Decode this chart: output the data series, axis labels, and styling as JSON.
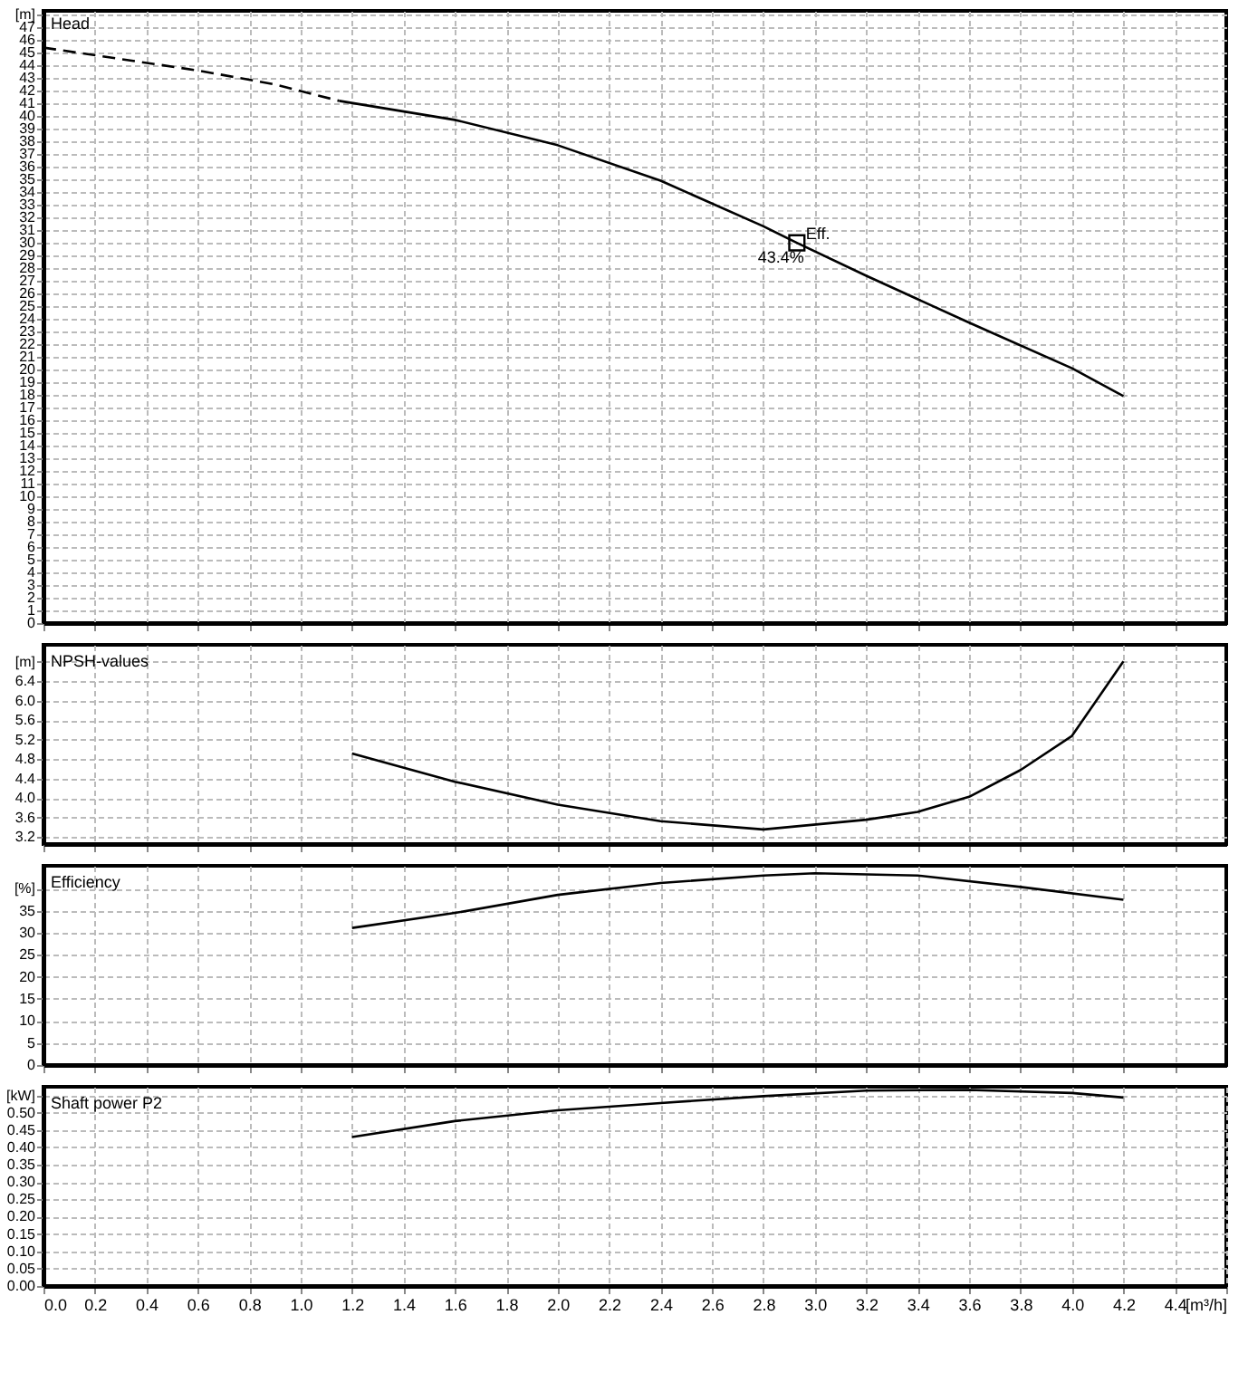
{
  "chart_data": [
    {
      "type": "line",
      "title": "Head",
      "xlim": [
        0,
        4.6
      ],
      "ylim": [
        0,
        48.3
      ],
      "xticks": [
        0,
        {
          "value": 0.2,
          "label": null
        },
        {
          "value": 0.4,
          "label": null
        },
        {
          "value": 0.6,
          "label": null
        },
        {
          "value": 0.8,
          "label": null
        },
        1,
        {
          "value": 1.2,
          "label": null
        },
        {
          "value": 1.4,
          "label": null
        },
        {
          "value": 1.6,
          "label": null
        },
        {
          "value": 1.8,
          "label": null
        },
        2,
        {
          "value": 2.2,
          "label": null
        },
        {
          "value": 2.4,
          "label": null
        },
        {
          "value": 2.6,
          "label": null
        },
        {
          "value": 2.8,
          "label": null
        },
        3,
        {
          "value": 3.2,
          "label": null
        },
        {
          "value": 3.4,
          "label": null
        },
        {
          "value": 3.6,
          "label": null
        },
        {
          "value": 3.8,
          "label": null
        },
        4,
        {
          "value": 4.2,
          "label": null
        },
        {
          "value": 4.4,
          "label": null
        }
      ],
      "yticks": [
        0,
        1,
        2,
        3,
        4,
        5,
        6,
        7,
        8,
        9,
        10,
        11,
        12,
        13,
        14,
        15,
        16,
        17,
        18,
        19,
        20,
        21,
        22,
        23,
        24,
        25,
        26,
        27,
        28,
        29,
        30,
        31,
        32,
        33,
        34,
        35,
        36,
        37,
        38,
        39,
        40,
        41,
        42,
        43,
        44,
        45,
        46,
        47,
        {
          "value": 48,
          "label": "[m]"
        }
      ],
      "tick_labels": "y",
      "grid": true,
      "series": [
        {
          "color": "#000000",
          "line_style": "dashed",
          "x": [
            0,
            0.3,
            0.6,
            0.9,
            1.15
          ],
          "values": [
            45.4,
            44.5,
            43.6,
            42.5,
            41.2
          ]
        },
        {
          "color": "#000000",
          "line_style": "solid",
          "x": [
            1.15,
            1.6,
            2.0,
            2.4,
            2.8,
            2.93,
            3.2,
            3.6,
            4.0,
            4.2
          ],
          "values": [
            41.2,
            39.7,
            37.7,
            34.9,
            31.3,
            30,
            27.4,
            23.7,
            20.1,
            17.9
          ]
        },
        {
          "type": "scatter",
          "color": "#000000",
          "marker": "square",
          "x": [
            2.93
          ],
          "values": [
            30
          ]
        }
      ],
      "annotations": [
        {
          "text": "Eff.",
          "x": 2.93,
          "y": 30
        },
        {
          "text": "43.4%",
          "x": 2.93,
          "y": 30
        }
      ]
    },
    {
      "type": "line",
      "title": "NPSH-values",
      "xlim": [
        0,
        4.6
      ],
      "ylim": [
        3.06,
        7.15
      ],
      "xticks": [
        0,
        {
          "value": 0.2,
          "label": null
        },
        {
          "value": 0.4,
          "label": null
        },
        {
          "value": 0.6,
          "label": null
        },
        {
          "value": 0.8,
          "label": null
        },
        1,
        {
          "value": 1.2,
          "label": null
        },
        {
          "value": 1.4,
          "label": null
        },
        {
          "value": 1.6,
          "label": null
        },
        {
          "value": 1.8,
          "label": null
        },
        2,
        {
          "value": 2.2,
          "label": null
        },
        {
          "value": 2.4,
          "label": null
        },
        {
          "value": 2.6,
          "label": null
        },
        {
          "value": 2.8,
          "label": null
        },
        3,
        {
          "value": 3.2,
          "label": null
        },
        {
          "value": 3.4,
          "label": null
        },
        {
          "value": 3.6,
          "label": null
        },
        {
          "value": 3.8,
          "label": null
        },
        4,
        {
          "value": 4.2,
          "label": null
        },
        {
          "value": 4.4,
          "label": null
        }
      ],
      "yticks": [
        3.2,
        3.6,
        {
          "value": 4,
          "label": "4.0"
        },
        4.4,
        4.8,
        5.2,
        5.6,
        {
          "value": 6,
          "label": "6.0"
        },
        6.4,
        {
          "value": 6.8,
          "label": "[m]"
        }
      ],
      "tick_labels": "y",
      "grid": true,
      "series": [
        {
          "color": "#000000",
          "line_style": "solid",
          "x": [
            1.2,
            1.6,
            2.0,
            2.4,
            2.8,
            3.2,
            3.4,
            3.6,
            3.8,
            4.0,
            4.2
          ],
          "values": [
            4.92,
            4.34,
            3.87,
            3.53,
            3.36,
            3.56,
            3.72,
            4.03,
            4.58,
            5.28,
            6.81
          ]
        }
      ]
    },
    {
      "type": "line",
      "title": "Efficiency",
      "xlim": [
        0,
        4.6
      ],
      "ylim": [
        0,
        45.2
      ],
      "xticks": [
        0,
        {
          "value": 0.2,
          "label": null
        },
        {
          "value": 0.4,
          "label": null
        },
        {
          "value": 0.6,
          "label": null
        },
        {
          "value": 0.8,
          "label": null
        },
        1,
        {
          "value": 1.2,
          "label": null
        },
        {
          "value": 1.4,
          "label": null
        },
        {
          "value": 1.6,
          "label": null
        },
        {
          "value": 1.8,
          "label": null
        },
        2,
        {
          "value": 2.2,
          "label": null
        },
        {
          "value": 2.4,
          "label": null
        },
        {
          "value": 2.6,
          "label": null
        },
        {
          "value": 2.8,
          "label": null
        },
        3,
        {
          "value": 3.2,
          "label": null
        },
        {
          "value": 3.4,
          "label": null
        },
        {
          "value": 3.6,
          "label": null
        },
        {
          "value": 3.8,
          "label": null
        },
        4,
        {
          "value": 4.2,
          "label": null
        },
        {
          "value": 4.4,
          "label": null
        }
      ],
      "yticks": [
        0,
        5,
        10,
        15,
        20,
        25,
        30,
        35,
        {
          "value": 40,
          "label": "[%]"
        }
      ],
      "tick_labels": "y",
      "grid": true,
      "series": [
        {
          "color": "#000000",
          "line_style": "solid",
          "x": [
            1.2,
            1.6,
            2.0,
            2.4,
            2.8,
            3.0,
            3.4,
            3.8,
            4.2
          ],
          "values": [
            31.1,
            34.5,
            38.6,
            41.3,
            43.0,
            43.5,
            43.0,
            40.4,
            37.5
          ]
        }
      ]
    },
    {
      "type": "line",
      "title": "Shaft power P2",
      "xlim": [
        0,
        4.6
      ],
      "ylim": [
        0,
        0.575
      ],
      "xticks": [
        {
          "value": 0,
          "label": "0.0"
        },
        0.2,
        0.4,
        0.6,
        0.8,
        {
          "value": 1,
          "label": "1.0"
        },
        1.2,
        1.4,
        1.6,
        1.8,
        {
          "value": 2,
          "label": "2.0"
        },
        2.2,
        2.4,
        2.6,
        2.8,
        {
          "value": 3,
          "label": "3.0"
        },
        3.2,
        3.4,
        3.6,
        3.8,
        {
          "value": 4,
          "label": "4.0"
        },
        4.2,
        4.4,
        {
          "value": 4.6,
          "label": "[m³/h]"
        }
      ],
      "yticks": [
        {
          "value": 0,
          "label": "0.00"
        },
        0.05,
        {
          "value": 0.1,
          "label": "0.10"
        },
        0.15,
        {
          "value": 0.2,
          "label": "0.20"
        },
        0.25,
        {
          "value": 0.3,
          "label": "0.30"
        },
        0.35,
        {
          "value": 0.4,
          "label": "0.40"
        },
        0.45,
        {
          "value": 0.5,
          "label": "0.50"
        },
        {
          "value": 0.55,
          "label": "[kW]"
        }
      ],
      "grid": true,
      "series": [
        {
          "color": "#000000",
          "line_style": "solid",
          "x": [
            1.2,
            1.6,
            2.0,
            2.4,
            2.8,
            3.2,
            3.6,
            4.0,
            4.2
          ],
          "values": [
            0.43,
            0.476,
            0.507,
            0.528,
            0.548,
            0.564,
            0.566,
            0.557,
            0.544
          ]
        }
      ]
    }
  ]
}
